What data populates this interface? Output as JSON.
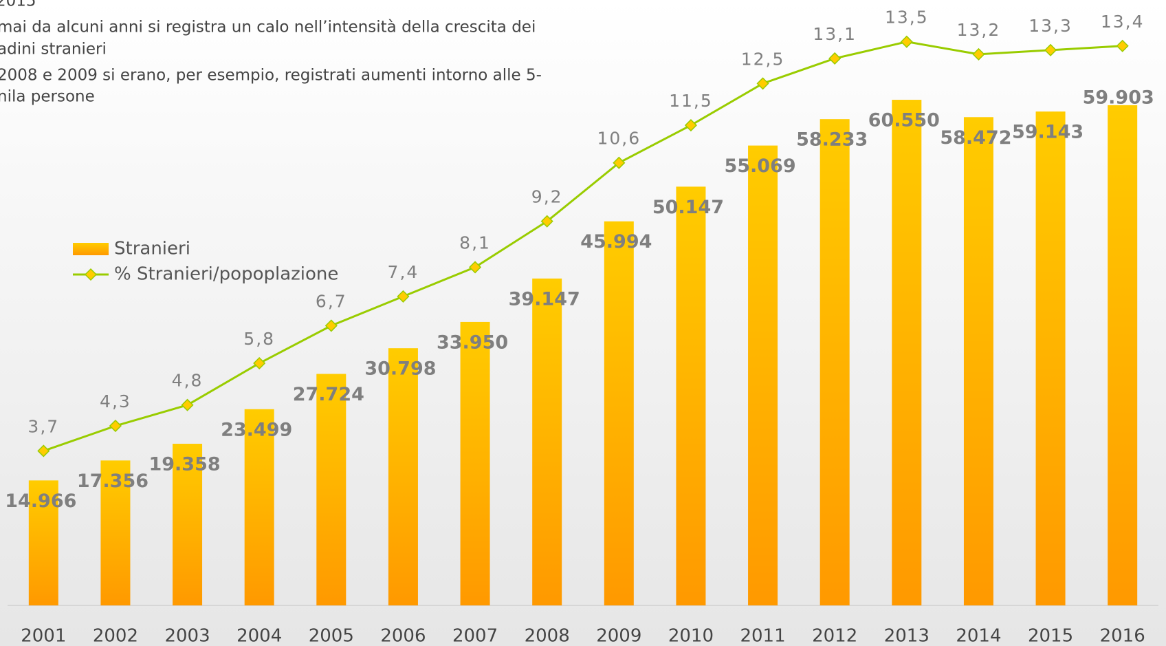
{
  "chart_data": {
    "type": "bar",
    "annotations": [
      "2015",
      "mai da alcuni anni si registra un calo nell’intensità della crescita dei",
      "adini stranieri",
      "2008 e 2009 si erano, per esempio, registrati aumenti intorno alle 5-",
      "nila persone"
    ],
    "categories": [
      "2001",
      "2002",
      "2003",
      "2004",
      "2005",
      "2006",
      "2007",
      "2008",
      "2009",
      "2010",
      "2011",
      "2012",
      "2013",
      "2014",
      "2015",
      "2016"
    ],
    "ylim": [
      0,
      72500
    ],
    "y2lim": [
      0,
      14.5
    ],
    "series": [
      {
        "name": "Stranieri",
        "type": "bar",
        "color": "#ffcc00",
        "color2": "#ff9900",
        "values": [
          14966,
          17356,
          19358,
          23499,
          27724,
          30798,
          33950,
          39147,
          45994,
          50147,
          55069,
          58233,
          60550,
          58472,
          59143,
          59903
        ],
        "value_labels": [
          "14.966",
          "17.356",
          "19.358",
          "23.499",
          "27.724",
          "30.798",
          "33.950",
          "39.147",
          "45.994",
          "50.147",
          "55.069",
          "58.233",
          "60.550",
          "58.472",
          "59.143",
          "59.903"
        ]
      },
      {
        "name": "% Stranieri/popoplazione",
        "type": "line",
        "axis": "y2",
        "color": "#99cc00",
        "marker_color": "#ffcc00",
        "values": [
          3.7,
          4.3,
          4.8,
          5.8,
          6.7,
          7.4,
          8.1,
          9.2,
          10.6,
          11.5,
          12.5,
          13.1,
          13.5,
          13.2,
          13.3,
          13.4
        ],
        "value_labels": [
          "3,7",
          "4,3",
          "4,8",
          "5,8",
          "6,7",
          "7,4",
          "8,1",
          "9,2",
          "10,6",
          "11,5",
          "12,5",
          "13,1",
          "13,5",
          "13,2",
          "13,3",
          "13,4"
        ]
      }
    ]
  }
}
